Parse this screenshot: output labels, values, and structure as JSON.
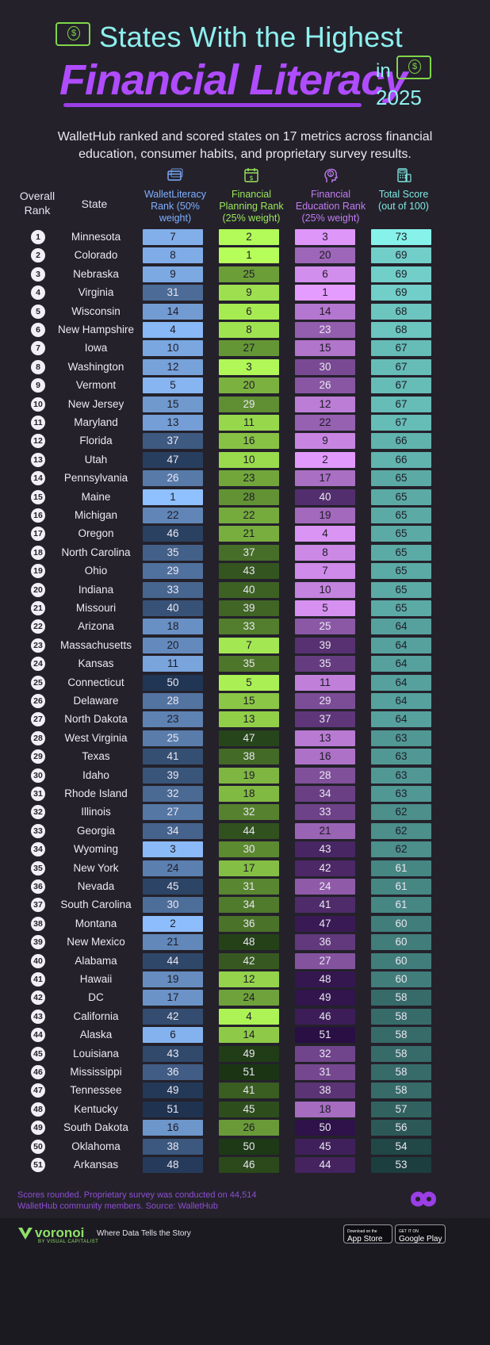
{
  "title": {
    "line1": "States With the Highest",
    "line2": "Financial Literacy",
    "in_word": "in",
    "year": "2025"
  },
  "subtitle": "WalletHub ranked and scored states on 17 metrics across financial education, consumer habits, and proprietary survey results.",
  "headers": {
    "rank": "Overall Rank",
    "state": "State",
    "walletliteracy": "WalletLiteracy Rank (50% weight)",
    "financial_planning": "Financial Planning Rank (25% weight)",
    "financial_education": "Financial Education Rank (25% weight)",
    "total_score": "Total Score (out of 100)"
  },
  "colors": {
    "walletliteracy": [
      "#8fc0ff",
      "#1f3350"
    ],
    "financial_planning": [
      "#b6ff5a",
      "#1b3514"
    ],
    "financial_education": [
      "#e59cff",
      "#2a0f45"
    ],
    "total_score": [
      "#86f2ea",
      "#1c3e3e"
    ]
  },
  "chart_data": {
    "type": "table",
    "columns": [
      "Overall Rank",
      "State",
      "WalletLiteracy Rank (50% weight)",
      "Financial Planning Rank (25% weight)",
      "Financial Education Rank (25% weight)",
      "Total Score (out of 100)"
    ],
    "rows": [
      [
        1,
        "Minnesota",
        7,
        2,
        3,
        73
      ],
      [
        2,
        "Colorado",
        8,
        1,
        20,
        69
      ],
      [
        3,
        "Nebraska",
        9,
        25,
        6,
        69
      ],
      [
        4,
        "Virginia",
        31,
        9,
        1,
        69
      ],
      [
        5,
        "Wisconsin",
        14,
        6,
        14,
        68
      ],
      [
        6,
        "New Hampshire",
        4,
        8,
        23,
        68
      ],
      [
        7,
        "Iowa",
        10,
        27,
        15,
        67
      ],
      [
        8,
        "Washington",
        12,
        3,
        30,
        67
      ],
      [
        9,
        "Vermont",
        5,
        20,
        26,
        67
      ],
      [
        10,
        "New Jersey",
        15,
        29,
        12,
        67
      ],
      [
        11,
        "Maryland",
        13,
        11,
        22,
        67
      ],
      [
        12,
        "Florida",
        37,
        16,
        9,
        66
      ],
      [
        13,
        "Utah",
        47,
        10,
        2,
        66
      ],
      [
        14,
        "Pennsylvania",
        26,
        23,
        17,
        65
      ],
      [
        15,
        "Maine",
        1,
        28,
        40,
        65
      ],
      [
        16,
        "Michigan",
        22,
        22,
        19,
        65
      ],
      [
        17,
        "Oregon",
        46,
        21,
        4,
        65
      ],
      [
        18,
        "North Carolina",
        35,
        37,
        8,
        65
      ],
      [
        19,
        "Ohio",
        29,
        43,
        7,
        65
      ],
      [
        20,
        "Indiana",
        33,
        40,
        10,
        65
      ],
      [
        21,
        "Missouri",
        40,
        39,
        5,
        65
      ],
      [
        22,
        "Arizona",
        18,
        33,
        25,
        64
      ],
      [
        23,
        "Massachusetts",
        20,
        7,
        39,
        64
      ],
      [
        24,
        "Kansas",
        11,
        35,
        35,
        64
      ],
      [
        25,
        "Connecticut",
        50,
        5,
        11,
        64
      ],
      [
        26,
        "Delaware",
        28,
        15,
        29,
        64
      ],
      [
        27,
        "North Dakota",
        23,
        13,
        37,
        64
      ],
      [
        28,
        "West Virginia",
        25,
        47,
        13,
        63
      ],
      [
        29,
        "Texas",
        41,
        38,
        16,
        63
      ],
      [
        30,
        "Idaho",
        39,
        19,
        28,
        63
      ],
      [
        31,
        "Rhode Island",
        32,
        18,
        34,
        63
      ],
      [
        32,
        "Illinois",
        27,
        32,
        33,
        62
      ],
      [
        33,
        "Georgia",
        34,
        44,
        21,
        62
      ],
      [
        34,
        "Wyoming",
        3,
        30,
        43,
        62
      ],
      [
        35,
        "New York",
        24,
        17,
        42,
        61
      ],
      [
        36,
        "Nevada",
        45,
        31,
        24,
        61
      ],
      [
        37,
        "South Carolina",
        30,
        34,
        41,
        61
      ],
      [
        38,
        "Montana",
        2,
        36,
        47,
        60
      ],
      [
        39,
        "New Mexico",
        21,
        48,
        36,
        60
      ],
      [
        40,
        "Alabama",
        44,
        42,
        27,
        60
      ],
      [
        41,
        "Hawaii",
        19,
        12,
        48,
        60
      ],
      [
        42,
        "DC",
        17,
        24,
        49,
        58
      ],
      [
        43,
        "California",
        42,
        4,
        46,
        58
      ],
      [
        44,
        "Alaska",
        6,
        14,
        51,
        58
      ],
      [
        45,
        "Louisiana",
        43,
        49,
        32,
        58
      ],
      [
        46,
        "Mississippi",
        36,
        51,
        31,
        58
      ],
      [
        47,
        "Tennessee",
        49,
        41,
        38,
        58
      ],
      [
        48,
        "Kentucky",
        51,
        45,
        18,
        57
      ],
      [
        49,
        "South Dakota",
        16,
        26,
        50,
        56
      ],
      [
        50,
        "Oklahoma",
        38,
        50,
        45,
        54
      ],
      [
        51,
        "Arkansas",
        48,
        46,
        44,
        53
      ]
    ]
  },
  "footnote": "Scores rounded. Proprietary survey was conducted on 44,514 WalletHub community members. Source: WalletHub",
  "footer": {
    "brand": "voronoi",
    "brand_sub": "BY VISUAL CAPITALIST",
    "tagline": "Where Data Tells the Story",
    "app_store_small": "Download on the",
    "app_store": "App Store",
    "google_play_small": "GET IT ON",
    "google_play": "Google Play"
  },
  "icons": [
    "money-icon",
    "credit-card-icon",
    "calendar-dollar-icon",
    "head-dollar-icon",
    "calculator-money-icon",
    "voronoi-blob-icon"
  ]
}
